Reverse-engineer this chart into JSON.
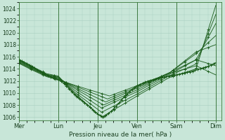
{
  "title": "Pression niveau de la mer( hPa )",
  "background_color": "#c8e6d8",
  "grid_color": "#a8cfc0",
  "line_color": "#1a5c1a",
  "ylim": [
    1005.5,
    1025.0
  ],
  "yticks": [
    1006,
    1008,
    1010,
    1012,
    1014,
    1016,
    1018,
    1020,
    1022,
    1024
  ],
  "day_labels": [
    "Mer",
    "Lun",
    "Jeu",
    "Ven",
    "Sam",
    "Dim"
  ],
  "day_x": [
    0,
    1,
    2,
    3,
    4,
    5
  ],
  "xlim": [
    0,
    5.15
  ],
  "series": [
    {
      "ctrl_x": [
        0.0,
        0.3,
        0.7,
        1.0,
        1.4,
        2.1,
        3.0,
        3.8,
        4.5,
        5.0
      ],
      "ctrl_y": [
        1015.5,
        1014.5,
        1013.2,
        1012.8,
        1010.0,
        1006.0,
        1009.5,
        1012.5,
        1014.0,
        1024.5
      ]
    },
    {
      "ctrl_x": [
        0.0,
        0.3,
        0.7,
        1.0,
        1.4,
        2.1,
        3.0,
        3.8,
        4.5,
        5.0
      ],
      "ctrl_y": [
        1015.4,
        1014.4,
        1013.1,
        1012.7,
        1010.2,
        1006.8,
        1009.8,
        1012.8,
        1014.8,
        1023.0
      ]
    },
    {
      "ctrl_x": [
        0.0,
        0.3,
        0.7,
        1.0,
        1.4,
        2.1,
        3.0,
        3.8,
        4.5,
        5.0
      ],
      "ctrl_y": [
        1015.3,
        1014.3,
        1013.0,
        1012.6,
        1010.5,
        1007.5,
        1010.2,
        1013.0,
        1015.5,
        1021.5
      ]
    },
    {
      "ctrl_x": [
        0.0,
        0.3,
        0.7,
        1.0,
        1.4,
        2.15,
        3.0,
        3.8,
        4.5,
        5.0
      ],
      "ctrl_y": [
        1015.2,
        1014.2,
        1013.0,
        1012.5,
        1010.8,
        1008.0,
        1010.5,
        1013.2,
        1016.5,
        1019.5
      ]
    },
    {
      "ctrl_x": [
        0.0,
        0.3,
        0.7,
        1.0,
        1.4,
        2.2,
        3.0,
        3.8,
        4.5,
        5.0
      ],
      "ctrl_y": [
        1015.1,
        1014.1,
        1012.9,
        1012.4,
        1011.0,
        1008.5,
        1010.8,
        1013.2,
        1016.8,
        1018.0
      ]
    },
    {
      "ctrl_x": [
        0.0,
        0.3,
        0.7,
        1.0,
        1.4,
        2.25,
        3.0,
        3.8,
        4.5,
        5.0
      ],
      "ctrl_y": [
        1015.0,
        1014.0,
        1012.8,
        1012.3,
        1011.2,
        1009.0,
        1011.0,
        1013.3,
        1015.5,
        1014.5
      ]
    },
    {
      "ctrl_x": [
        0.0,
        0.3,
        0.7,
        1.0,
        1.4,
        2.3,
        3.0,
        3.8,
        4.5,
        5.0
      ],
      "ctrl_y": [
        1014.9,
        1013.9,
        1012.7,
        1012.2,
        1011.3,
        1009.5,
        1011.2,
        1013.2,
        1014.5,
        1013.0
      ]
    }
  ],
  "obs_x": [
    0.0,
    0.1,
    0.2,
    0.3,
    0.4,
    0.5,
    0.6,
    0.7,
    0.8,
    0.9,
    1.0,
    1.1,
    1.2,
    1.3,
    1.4,
    1.5,
    1.6,
    1.7,
    1.8,
    1.9,
    2.0,
    2.1,
    2.15,
    2.2,
    2.35,
    2.5,
    2.65,
    2.8,
    3.0,
    3.2,
    3.4,
    3.6,
    3.8,
    4.0,
    4.2,
    4.4,
    4.6,
    4.7,
    4.8,
    4.9,
    5.0
  ],
  "obs_y": [
    1015.5,
    1015.2,
    1014.9,
    1014.5,
    1014.1,
    1013.7,
    1013.3,
    1013.0,
    1012.7,
    1012.4,
    1012.2,
    1011.8,
    1011.2,
    1010.5,
    1009.8,
    1009.2,
    1008.7,
    1008.2,
    1007.7,
    1007.0,
    1006.5,
    1006.1,
    1006.0,
    1006.2,
    1007.0,
    1008.0,
    1009.2,
    1010.2,
    1011.2,
    1011.8,
    1012.2,
    1012.5,
    1012.8,
    1013.0,
    1013.3,
    1013.6,
    1014.0,
    1014.2,
    1014.4,
    1014.7,
    1015.0
  ]
}
